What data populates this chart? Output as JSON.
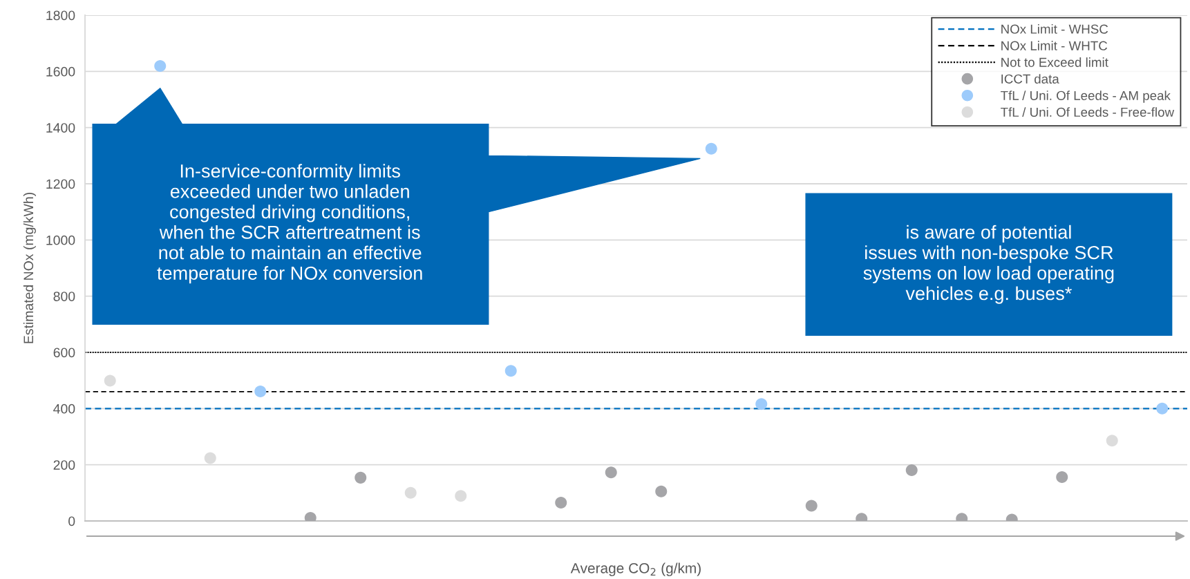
{
  "chart_data": {
    "type": "scatter",
    "xlabel": "Average CO$_{2}$ (g/km)",
    "ylabel": "Estimated NOx (mg/kWh)",
    "categories": [
      null,
      null,
      null,
      null,
      null,
      null,
      null,
      null,
      null,
      null,
      null,
      null,
      null,
      null,
      null,
      null,
      null,
      null,
      null,
      null,
      null,
      null
    ],
    "ylim": [
      0,
      1800
    ],
    "yticks": [
      0,
      200,
      400,
      600,
      800,
      1000,
      1200,
      1400,
      1600,
      1800
    ],
    "grid": "y",
    "legend": "top right",
    "marker": "circle",
    "ref_lines": [
      {
        "axis": "y",
        "value": 400,
        "label": "NOx Limit - WHSC",
        "color": "#0070c0",
        "line_style": "dashed"
      },
      {
        "axis": "y",
        "value": 460,
        "label": "NOx Limit - WHTC",
        "color": "#000000",
        "line_style": "dashed"
      },
      {
        "axis": "y",
        "value": 600,
        "label": "Not to Exceed limit",
        "color": "#000000",
        "line_style": "dotted"
      }
    ],
    "series": [
      {
        "name": "ICCT data",
        "color": "#a5a5a8",
        "values": [
          null,
          null,
          null,
          null,
          11,
          154,
          null,
          null,
          null,
          65,
          173,
          105,
          null,
          null,
          54,
          8,
          181,
          8,
          5,
          156,
          null,
          null
        ]
      },
      {
        "name": "TfL / Uni. Of Leeds - AM peak",
        "color": "#9dcbfb",
        "values": [
          null,
          1619,
          null,
          461,
          null,
          null,
          null,
          null,
          534,
          null,
          null,
          null,
          1325,
          416,
          null,
          null,
          null,
          null,
          null,
          null,
          null,
          400
        ]
      },
      {
        "name": "TfL / Uni. Of Leeds - Free-flow",
        "color": "#dcdcdc",
        "values": [
          499,
          null,
          224,
          null,
          null,
          null,
          100,
          89,
          null,
          null,
          null,
          null,
          null,
          null,
          null,
          null,
          null,
          null,
          null,
          null,
          286,
          null
        ]
      }
    ],
    "annotations": [
      "In-service-conformity limits\nexceeded under two unladen\ncongested driving conditions,\nwhen the SCR aftertreatment is\nnot able to maintain an effective\ntemperature for NOx conversion",
      "is aware of potential\nissues with non-bespoke SCR\nsystems on low load operating\nvehicles e.g. buses*"
    ]
  }
}
